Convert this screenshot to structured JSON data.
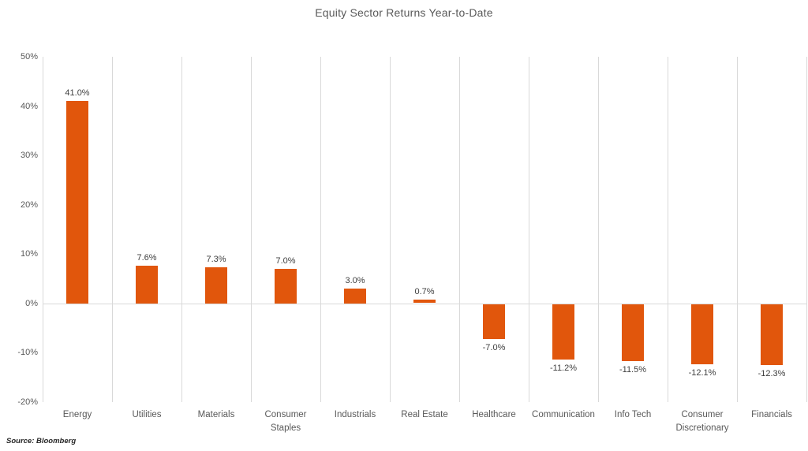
{
  "title": "Equity Sector Returns Year-to-Date",
  "source_note": "Source: Bloomberg",
  "colors": {
    "bar": "#e1560c",
    "gridline": "#d9d9d9",
    "axis_text": "#595959",
    "title_text": "#595959",
    "data_label_text": "#404040",
    "background": "#ffffff"
  },
  "chart_data": {
    "type": "bar",
    "title": "Equity Sector Returns Year-to-Date",
    "categories": [
      "Energy",
      "Utilities",
      "Materials",
      "Consumer Staples",
      "Industrials",
      "Real Estate",
      "Healthcare",
      "Communication",
      "Info Tech",
      "Consumer Discretionary",
      "Financials"
    ],
    "values": [
      41.0,
      7.6,
      7.3,
      7.0,
      3.0,
      0.7,
      -7.0,
      -11.2,
      -11.5,
      -12.1,
      -12.3
    ],
    "data_labels": [
      "41.0%",
      "7.6%",
      "7.3%",
      "7.0%",
      "3.0%",
      "0.7%",
      "-7.0%",
      "-11.2%",
      "-11.5%",
      "-12.1%",
      "-12.3%"
    ],
    "xlabel": "",
    "ylabel": "",
    "ylim": [
      -20,
      50
    ],
    "y_ticks": [
      {
        "label": "50%",
        "value": 50
      },
      {
        "label": "40%",
        "value": 40
      },
      {
        "label": "30%",
        "value": 30
      },
      {
        "label": "20%",
        "value": 20
      },
      {
        "label": "10%",
        "value": 10
      },
      {
        "label": "0%",
        "value": 0
      },
      {
        "label": "-10%",
        "value": -10
      },
      {
        "label": "-20%",
        "value": -20
      }
    ],
    "grid": "vertical-only",
    "legend": "none",
    "bar_color": "#e1560c"
  }
}
